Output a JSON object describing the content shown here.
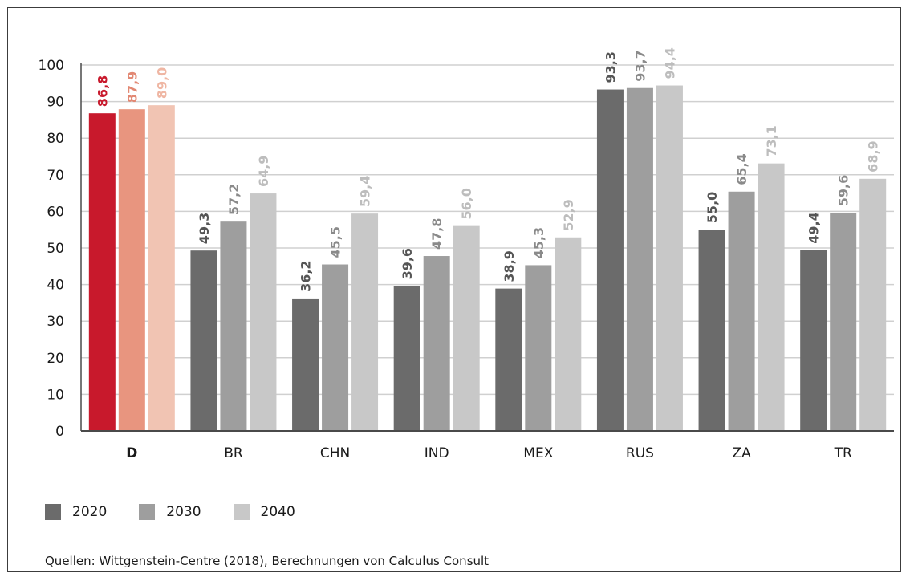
{
  "chart_data": {
    "type": "bar",
    "categories": [
      "D",
      "BR",
      "CHN",
      "IND",
      "MEX",
      "RUS",
      "ZA",
      "TR"
    ],
    "series": [
      {
        "name": "2020",
        "values": [
          86.8,
          49.3,
          36.2,
          39.6,
          38.9,
          93.3,
          55.0,
          49.4
        ]
      },
      {
        "name": "2030",
        "values": [
          87.9,
          57.2,
          45.5,
          47.8,
          45.3,
          93.7,
          65.4,
          59.6
        ]
      },
      {
        "name": "2040",
        "values": [
          89.0,
          64.9,
          59.4,
          56.0,
          52.9,
          94.4,
          73.1,
          68.9
        ]
      }
    ],
    "value_labels": [
      [
        "86,8",
        "49,3",
        "36,2",
        "39,6",
        "38,9",
        "93,3",
        "55,0",
        "49,4"
      ],
      [
        "87,9",
        "57,2",
        "45,5",
        "47,8",
        "45,3",
        "93,7",
        "65,4",
        "59,6"
      ],
      [
        "89,0",
        "64,9",
        "59,4",
        "56,0",
        "52,9",
        "94,4",
        "73,1",
        "68,9"
      ]
    ],
    "yticks": [
      0,
      10,
      20,
      30,
      40,
      50,
      60,
      70,
      80,
      90,
      100
    ],
    "ylim": [
      0,
      100
    ],
    "grid": true,
    "legend_position": "bottom-left",
    "highlight_category": "D",
    "colors": {
      "series": [
        "#6b6b6b",
        "#9e9e9e",
        "#c8c8c8"
      ],
      "highlight_series": [
        "#c8192c",
        "#e8957f",
        "#f1c4b3"
      ],
      "highlight_labels": [
        "#c8192c",
        "#e28873",
        "#efb6a3"
      ],
      "label_colors": [
        "#555555",
        "#8a8a8a",
        "#bdbdbd"
      ],
      "grid": "#d0d0d0",
      "axis": "#4a4a4a"
    }
  },
  "legend": {
    "items": [
      {
        "label": "2020",
        "color": "#6b6b6b"
      },
      {
        "label": "2030",
        "color": "#9e9e9e"
      },
      {
        "label": "2040",
        "color": "#c8c8c8"
      }
    ]
  },
  "source": "Quellen: Wittgenstein-Centre (2018), Berechnungen von Calculus Consult"
}
